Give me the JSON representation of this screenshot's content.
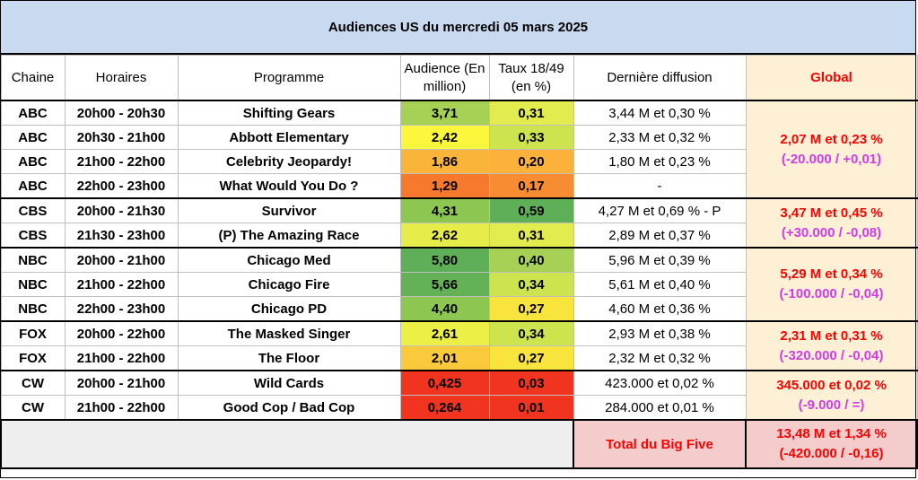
{
  "title": "Audiences US du mercredi 05 mars 2025",
  "headers": {
    "chaine": "Chaine",
    "horaires": "Horaires",
    "programme": "Programme",
    "audience": "Audience (En million)",
    "taux": "Taux 18/49 (en %)",
    "derniere": "Dernière diffusion",
    "global": "Global"
  },
  "rows": [
    {
      "chaine": "ABC",
      "horaires": "20h00 - 20h30",
      "programme": "Shifting Gears",
      "audience": "3,71",
      "taux": "0,31",
      "derniere": "3,44 M et 0,30 %",
      "aud_color": "#a6d155",
      "taux_color": "#e2ec4e"
    },
    {
      "chaine": "ABC",
      "horaires": "20h30 - 21h00",
      "programme": "Abbott Elementary",
      "audience": "2,42",
      "taux": "0,33",
      "derniere": "2,33 M et 0,32 %",
      "aud_color": "#fcf73c",
      "taux_color": "#cde44f"
    },
    {
      "chaine": "ABC",
      "horaires": "21h00 - 22h00",
      "programme": "Celebrity Jeopardy!",
      "audience": "1,86",
      "taux": "0,20",
      "derniere": "1,80 M et 0,23 %",
      "aud_color": "#fab43a",
      "taux_color": "#fbb13a"
    },
    {
      "chaine": "ABC",
      "horaires": "22h00 - 23h00",
      "programme": "What Would You Do ?",
      "audience": "1,29",
      "taux": "0,17",
      "derniere": "-",
      "aud_color": "#f6792e",
      "taux_color": "#f88c33"
    },
    {
      "chaine": "CBS",
      "horaires": "20h00 - 21h30",
      "programme": "Survivor",
      "audience": "4,31",
      "taux": "0,59",
      "derniere": "4,27 M et 0,69 % - P",
      "aud_color": "#8ec652",
      "taux_color": "#5fae58"
    },
    {
      "chaine": "CBS",
      "horaires": "21h30 - 23h00",
      "programme": "(P) The Amazing Race",
      "audience": "2,62",
      "taux": "0,31",
      "derniere": "2,89 M et 0,37 %",
      "aud_color": "#e6ed4a",
      "taux_color": "#e2ec4e"
    },
    {
      "chaine": "NBC",
      "horaires": "20h00 - 21h00",
      "programme": "Chicago Med",
      "audience": "5,80",
      "taux": "0,40",
      "derniere": "5,96 M et 0,39 %",
      "aud_color": "#5fae58",
      "taux_color": "#a6d155"
    },
    {
      "chaine": "NBC",
      "horaires": "21h00 - 22h00",
      "programme": "Chicago Fire",
      "audience": "5,66",
      "taux": "0,34",
      "derniere": "5,61 M et 0,40 %",
      "aud_color": "#64b157",
      "taux_color": "#cde44f"
    },
    {
      "chaine": "NBC",
      "horaires": "22h00 - 23h00",
      "programme": "Chicago PD",
      "audience": "4,40",
      "taux": "0,27",
      "derniere": "4,60 M et 0,36 %",
      "aud_color": "#8ec652",
      "taux_color": "#f9e43e"
    },
    {
      "chaine": "FOX",
      "horaires": "20h00 - 22h00",
      "programme": "The Masked Singer",
      "audience": "2,61",
      "taux": "0,34",
      "derniere": "2,93 M et 0,38 %",
      "aud_color": "#ecef46",
      "taux_color": "#cde44f"
    },
    {
      "chaine": "FOX",
      "horaires": "21h00 - 22h00",
      "programme": "The Floor",
      "audience": "2,01",
      "taux": "0,27",
      "derniere": "2,32 M et 0,32 %",
      "aud_color": "#fbc93c",
      "taux_color": "#f9e43e"
    },
    {
      "chaine": "CW",
      "horaires": "20h00 - 21h00",
      "programme": "Wild Cards",
      "audience": "0,425",
      "taux": "0,03",
      "derniere": "423.000 et 0,02 %",
      "aud_color": "#f0341f",
      "taux_color": "#f0341f"
    },
    {
      "chaine": "CW",
      "horaires": "21h00 - 22h00",
      "programme": "Good Cop / Bad Cop",
      "audience": "0,264",
      "taux": "0,01",
      "derniere": "284.000 et 0,01 %",
      "aud_color": "#f0341f",
      "taux_color": "#f0341f"
    }
  ],
  "globals": [
    {
      "main": "2,07 M et 0,23 %",
      "sub": "(-20.000 / +0,01)"
    },
    {
      "main": "3,47 M et 0,45 %",
      "sub": "(+30.000 / -0,08)"
    },
    {
      "main": "5,29 M et 0,34 %",
      "sub": "(-100.000 / -0,04)"
    },
    {
      "main": "2,31 M et 0,31 %",
      "sub": "(-320.000 / -0,04)"
    },
    {
      "main": "345.000 et 0,02 %",
      "sub": "(-9.000 / =)"
    }
  ],
  "total": {
    "label": "Total du Big Five",
    "main": "13,48 M et 1,34 %",
    "sub": "(-420.000 / -0,16)"
  }
}
